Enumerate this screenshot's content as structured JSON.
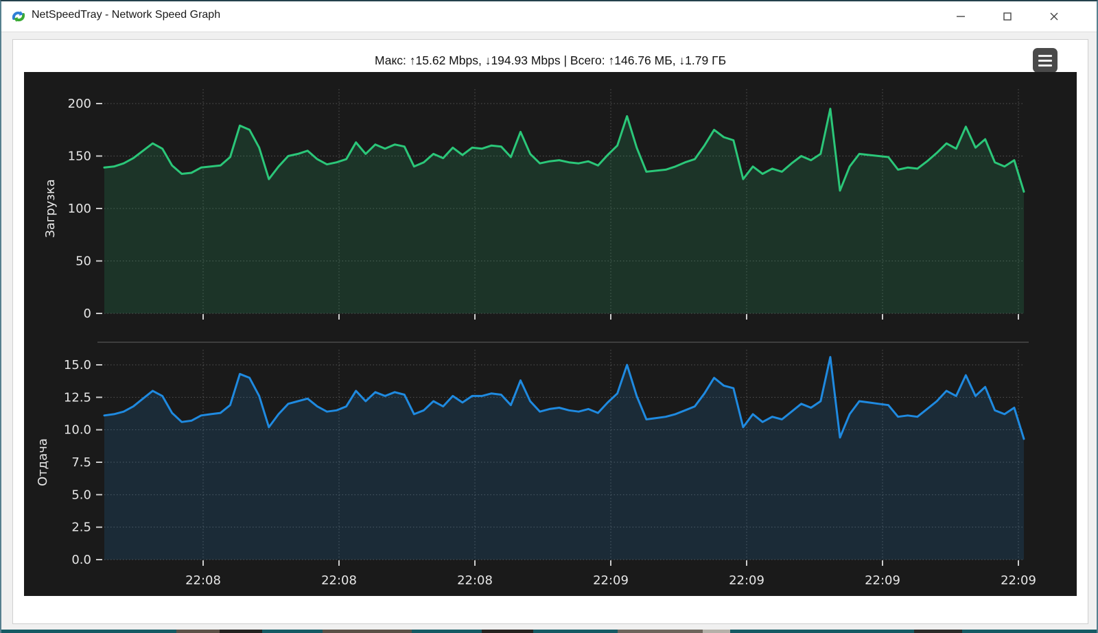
{
  "window": {
    "title": "NetSpeedTray - Network Speed Graph",
    "app_icon": "netspeedtray-logo",
    "controls": [
      {
        "name": "minimize",
        "glyph": "–"
      },
      {
        "name": "maximize",
        "glyph": "□"
      },
      {
        "name": "close",
        "glyph": "✕"
      }
    ]
  },
  "header": {
    "stats_text": "Макс: ↑15.62 Mbps, ↓194.93 Mbps | Всего: ↑146.76 МБ, ↓1.79 ГБ",
    "menu_icon": "hamburger-menu"
  },
  "colors": {
    "download_line": "#2bc779",
    "upload_line": "#1f8ae0",
    "chart_bg": "#1a1a1a",
    "grid": "#545454",
    "tick_mark": "#cccccc",
    "tick_text": "#e6e6e6",
    "separator": "#4a4a4a"
  },
  "chart_data": [
    {
      "type": "area",
      "series_name": "download",
      "ylabel": "Загрузка",
      "unit": "Mbps",
      "ylim": [
        0,
        210
      ],
      "yticks": [
        0,
        50,
        100,
        150,
        200
      ],
      "ytick_labels": [
        "0",
        "50",
        "100",
        "150",
        "200"
      ],
      "x_tick_labels": [
        "22:08",
        "22:08",
        "22:08",
        "22:09",
        "22:09",
        "22:09",
        "22:09"
      ],
      "show_x_tick_labels": false,
      "grid": true,
      "color": "#2bc779",
      "values": [
        139,
        140,
        143,
        148,
        155,
        162,
        157,
        141,
        133,
        134,
        139,
        140,
        141,
        149,
        179,
        175,
        158,
        128,
        140,
        150,
        152,
        155,
        147,
        142,
        144,
        147,
        163,
        152,
        161,
        157,
        161,
        159,
        140,
        144,
        152,
        148,
        158,
        151,
        158,
        157,
        160,
        159,
        149,
        173,
        152,
        143,
        145,
        146,
        144,
        143,
        145,
        141,
        151,
        160,
        188,
        158,
        135,
        136,
        137,
        140,
        144,
        147,
        160,
        175,
        168,
        165,
        128,
        140,
        133,
        138,
        135,
        143,
        150,
        146,
        152,
        195,
        117,
        140,
        152,
        151,
        150,
        149,
        137,
        139,
        138,
        145,
        153,
        162,
        157,
        178,
        158,
        166,
        144,
        140,
        146,
        116
      ]
    },
    {
      "type": "area",
      "series_name": "upload",
      "ylabel": "Отдача",
      "unit": "Mbps",
      "ylim": [
        0,
        16.2
      ],
      "yticks": [
        0,
        2.5,
        5,
        7.5,
        10,
        12.5,
        15
      ],
      "ytick_labels": [
        "0.0",
        "2.5",
        "5.0",
        "7.5",
        "10.0",
        "12.5",
        "15.0"
      ],
      "x_tick_labels": [
        "22:08",
        "22:08",
        "22:08",
        "22:09",
        "22:09",
        "22:09",
        "22:09"
      ],
      "show_x_tick_labels": true,
      "grid": true,
      "color": "#1f8ae0",
      "values": [
        11.1,
        11.2,
        11.4,
        11.8,
        12.4,
        13.0,
        12.6,
        11.3,
        10.6,
        10.7,
        11.1,
        11.2,
        11.3,
        11.9,
        14.3,
        14.0,
        12.6,
        10.2,
        11.2,
        12.0,
        12.2,
        12.4,
        11.8,
        11.4,
        11.5,
        11.8,
        13.0,
        12.2,
        12.9,
        12.6,
        12.9,
        12.7,
        11.2,
        11.5,
        12.2,
        11.8,
        12.6,
        12.1,
        12.6,
        12.6,
        12.8,
        12.7,
        11.9,
        13.8,
        12.2,
        11.4,
        11.6,
        11.7,
        11.5,
        11.4,
        11.6,
        11.3,
        12.1,
        12.8,
        15.0,
        12.6,
        10.8,
        10.9,
        11.0,
        11.2,
        11.5,
        11.8,
        12.8,
        14.0,
        13.4,
        13.2,
        10.2,
        11.2,
        10.6,
        11.0,
        10.8,
        11.4,
        12.0,
        11.7,
        12.2,
        15.6,
        9.4,
        11.2,
        12.2,
        12.1,
        12.0,
        11.9,
        11.0,
        11.1,
        11.0,
        11.6,
        12.2,
        13.0,
        12.6,
        14.2,
        12.6,
        13.3,
        11.5,
        11.2,
        11.7,
        9.3
      ]
    }
  ]
}
